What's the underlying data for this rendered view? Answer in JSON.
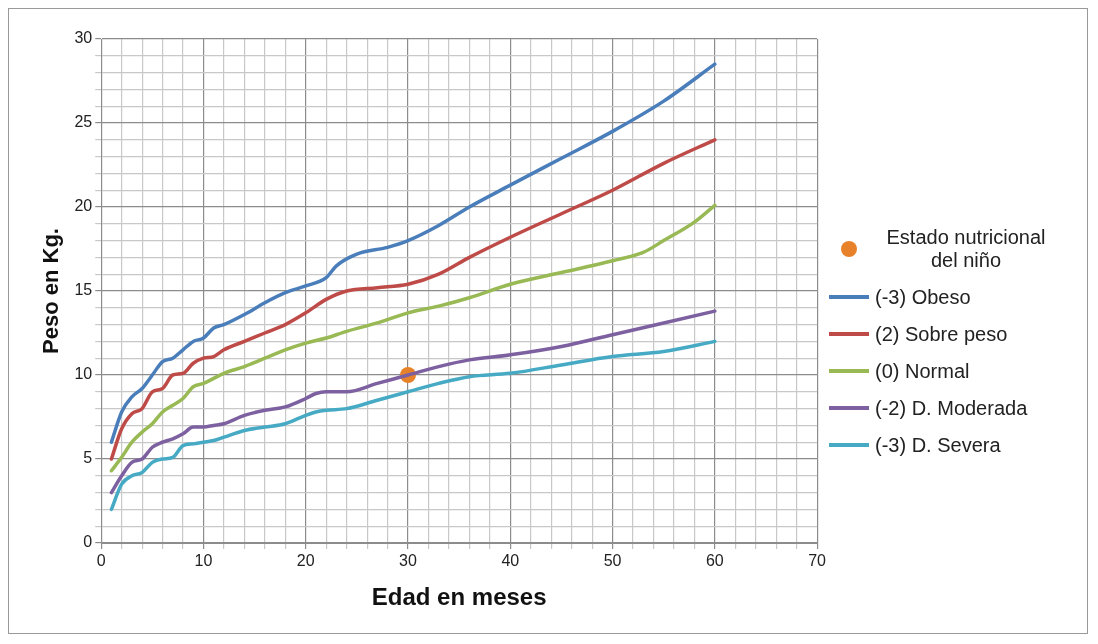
{
  "chart_data": {
    "type": "line",
    "xlabel": "Edad en meses",
    "ylabel": "Peso en Kg.",
    "xlim": [
      0,
      70
    ],
    "ylim": [
      0,
      30
    ],
    "xticks": [
      0,
      {
        "value": 2,
        "label": null
      },
      {
        "value": 4,
        "label": null
      },
      {
        "value": 6,
        "label": null
      },
      {
        "value": 8,
        "label": null
      },
      10,
      {
        "value": 12,
        "label": null
      },
      {
        "value": 14,
        "label": null
      },
      {
        "value": 16,
        "label": null
      },
      {
        "value": 18,
        "label": null
      },
      20,
      {
        "value": 22,
        "label": null
      },
      {
        "value": 24,
        "label": null
      },
      {
        "value": 26,
        "label": null
      },
      {
        "value": 28,
        "label": null
      },
      30,
      {
        "value": 32,
        "label": null
      },
      {
        "value": 34,
        "label": null
      },
      {
        "value": 36,
        "label": null
      },
      {
        "value": 38,
        "label": null
      },
      40,
      {
        "value": 42,
        "label": null
      },
      {
        "value": 44,
        "label": null
      },
      {
        "value": 46,
        "label": null
      },
      {
        "value": 48,
        "label": null
      },
      50,
      {
        "value": 52,
        "label": null
      },
      {
        "value": 54,
        "label": null
      },
      {
        "value": 56,
        "label": null
      },
      {
        "value": 58,
        "label": null
      },
      60,
      {
        "value": 62,
        "label": null
      },
      {
        "value": 64,
        "label": null
      },
      {
        "value": 66,
        "label": null
      },
      {
        "value": 68,
        "label": null
      },
      70
    ],
    "yticks": [
      0,
      {
        "value": 1,
        "label": null
      },
      {
        "value": 2,
        "label": null
      },
      {
        "value": 3,
        "label": null
      },
      {
        "value": 4,
        "label": null
      },
      5,
      {
        "value": 6,
        "label": null
      },
      {
        "value": 7,
        "label": null
      },
      {
        "value": 8,
        "label": null
      },
      {
        "value": 9,
        "label": null
      },
      10,
      {
        "value": 11,
        "label": null
      },
      {
        "value": 12,
        "label": null
      },
      {
        "value": 13,
        "label": null
      },
      {
        "value": 14,
        "label": null
      },
      15,
      {
        "value": 16,
        "label": null
      },
      {
        "value": 17,
        "label": null
      },
      {
        "value": 18,
        "label": null
      },
      {
        "value": 19,
        "label": null
      },
      20,
      {
        "value": 21,
        "label": null
      },
      {
        "value": 22,
        "label": null
      },
      {
        "value": 23,
        "label": null
      },
      {
        "value": 24,
        "label": null
      },
      25,
      {
        "value": 26,
        "label": null
      },
      {
        "value": 27,
        "label": null
      },
      {
        "value": 28,
        "label": null
      },
      {
        "value": 29,
        "label": null
      },
      30
    ],
    "grid": true,
    "legend": "right",
    "marker": "none",
    "line_style": "solid",
    "series": [
      {
        "name": "Estado nutricional del niño",
        "type": "scatter",
        "marker": "circle",
        "color": "#e8822a",
        "x": [
          30
        ],
        "values": [
          10
        ]
      },
      {
        "name": "(-3) Obeso",
        "color": "#4a7ebb",
        "x": [
          1,
          2,
          3,
          4,
          5,
          6,
          7,
          8,
          9,
          10,
          11,
          12,
          14,
          16,
          18,
          20,
          22,
          23,
          25,
          28,
          30,
          33,
          36,
          40,
          45,
          50,
          55,
          60
        ],
        "values": [
          6,
          7.8,
          8.7,
          9.2,
          10,
          10.8,
          11,
          11.5,
          12,
          12.2,
          12.8,
          13,
          13.6,
          14.3,
          14.9,
          15.3,
          15.8,
          16.5,
          17.2,
          17.6,
          18,
          18.9,
          20,
          21.3,
          22.9,
          24.5,
          26.3,
          28.5
        ]
      },
      {
        "name": "(2) Sobre peso",
        "color": "#be4b48",
        "x": [
          1,
          2,
          3,
          4,
          5,
          6,
          7,
          8,
          9,
          10,
          11,
          12,
          14,
          16,
          18,
          20,
          22,
          24,
          27,
          30,
          33,
          36,
          40,
          45,
          50,
          55,
          60
        ],
        "values": [
          5,
          6.8,
          7.7,
          8,
          9,
          9.2,
          10,
          10.1,
          10.7,
          11,
          11.1,
          11.5,
          12,
          12.5,
          13,
          13.7,
          14.5,
          15,
          15.2,
          15.4,
          16,
          17,
          18.2,
          19.6,
          21,
          22.6,
          24
        ]
      },
      {
        "name": "(0) Normal",
        "color": "#98b954",
        "x": [
          1,
          2,
          3,
          4,
          5,
          6,
          7,
          8,
          9,
          10,
          11,
          12,
          14,
          16,
          18,
          20,
          22,
          24,
          27,
          30,
          33,
          36,
          40,
          45,
          50,
          53,
          55,
          58,
          60
        ],
        "values": [
          4.3,
          5.1,
          6,
          6.6,
          7.1,
          7.8,
          8.2,
          8.6,
          9.3,
          9.5,
          9.8,
          10.1,
          10.5,
          11,
          11.5,
          11.9,
          12.2,
          12.6,
          13.1,
          13.7,
          14.1,
          14.6,
          15.4,
          16.1,
          16.8,
          17.3,
          18,
          19.1,
          20.1
        ]
      },
      {
        "name": "(-2) D. Moderada",
        "color": "#7d60a0",
        "x": [
          1,
          2,
          3,
          4,
          5,
          6,
          7,
          8,
          9,
          10,
          11,
          12,
          14,
          16,
          18,
          20,
          21,
          22,
          24,
          27,
          30,
          33,
          36,
          40,
          45,
          50,
          55,
          60
        ],
        "values": [
          3,
          4,
          4.8,
          5,
          5.7,
          6,
          6.2,
          6.5,
          6.9,
          6.9,
          7,
          7.1,
          7.6,
          7.9,
          8.1,
          8.6,
          8.9,
          9,
          9,
          9.5,
          10,
          10.5,
          10.9,
          11.2,
          11.7,
          12.4,
          13.1,
          13.8
        ]
      },
      {
        "name": "(-3) D. Severa",
        "color": "#46aac5",
        "x": [
          1,
          2,
          3,
          4,
          5,
          6,
          7,
          8,
          9,
          10,
          11,
          12,
          14,
          16,
          18,
          20,
          21,
          22,
          24,
          27,
          30,
          33,
          36,
          40,
          45,
          50,
          55,
          60
        ],
        "values": [
          2,
          3.5,
          4,
          4.2,
          4.8,
          5,
          5.1,
          5.8,
          5.9,
          6,
          6.1,
          6.3,
          6.7,
          6.9,
          7.1,
          7.6,
          7.8,
          7.9,
          8,
          8.5,
          9,
          9.5,
          9.9,
          10.1,
          10.6,
          11.1,
          11.4,
          12
        ]
      }
    ]
  }
}
